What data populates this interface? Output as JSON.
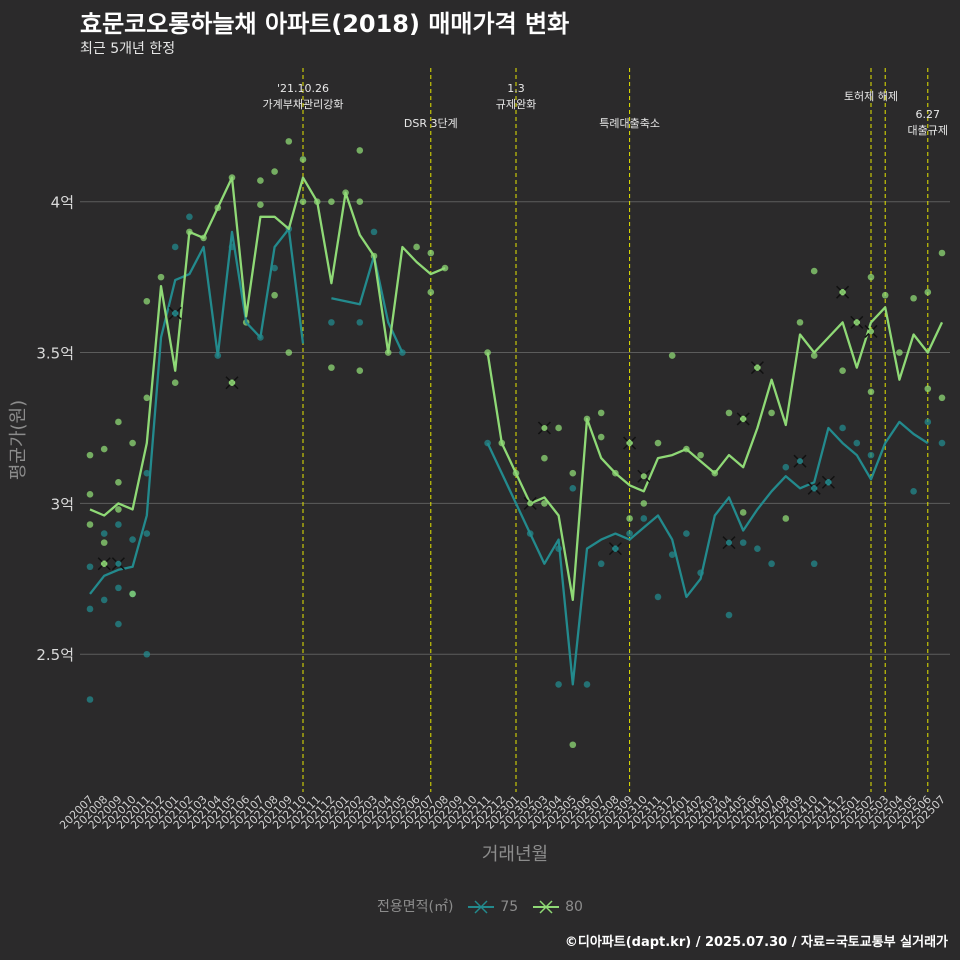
{
  "title": "효문코오롱하늘채 아파트(2018) 매매가격 변화",
  "subtitle": "최근 5개년 한정",
  "caption": "©디아파트(dapt.kr) / 2025.07.30 / 자료=국토교통부 실거래가",
  "colors": {
    "background": "#2b2a2b",
    "s75": "#238a8d",
    "s80": "#8fd976",
    "event_line": "#e5e500",
    "grid": "#5c5c5c"
  },
  "chart_data": {
    "type": "line",
    "xlabel": "거래년월",
    "ylabel": "평균가(원)",
    "ylim": [
      2.05,
      4.42
    ],
    "y_ticks": [
      {
        "value": 2.5,
        "label": "2.5억"
      },
      {
        "value": 3.0,
        "label": "3억"
      },
      {
        "value": 3.5,
        "label": "3.5억"
      },
      {
        "value": 4.0,
        "label": "4억"
      }
    ],
    "legend_title": "전용면적(㎡)",
    "legend_position": "bottom",
    "categories": [
      "202007",
      "202008",
      "202009",
      "202010",
      "202011",
      "202012",
      "202101",
      "202102",
      "202103",
      "202104",
      "202105",
      "202106",
      "202107",
      "202108",
      "202109",
      "202110",
      "202111",
      "202112",
      "202201",
      "202202",
      "202203",
      "202204",
      "202205",
      "202206",
      "202207",
      "202208",
      "202209",
      "202210",
      "202211",
      "202212",
      "202301",
      "202302",
      "202303",
      "202304",
      "202305",
      "202306",
      "202307",
      "202308",
      "202309",
      "202310",
      "202311",
      "202312",
      "202401",
      "202402",
      "202403",
      "202404",
      "202405",
      "202406",
      "202407",
      "202408",
      "202409",
      "202410",
      "202411",
      "202412",
      "202501",
      "202502",
      "202503",
      "202504",
      "202505",
      "202506",
      "202507"
    ],
    "series": [
      {
        "name": "75",
        "color": "#238a8d",
        "values": [
          2.7,
          2.76,
          2.78,
          2.79,
          2.96,
          3.55,
          3.74,
          3.76,
          3.85,
          3.49,
          3.9,
          3.6,
          3.55,
          3.85,
          3.91,
          3.53,
          null,
          3.68,
          3.67,
          3.66,
          3.82,
          3.6,
          3.5,
          null,
          null,
          null,
          null,
          null,
          3.2,
          3.1,
          3.0,
          2.9,
          2.8,
          2.88,
          2.4,
          2.85,
          2.88,
          2.9,
          2.88,
          2.92,
          2.96,
          2.88,
          2.69,
          2.75,
          2.96,
          3.02,
          2.91,
          2.98,
          3.04,
          3.09,
          3.05,
          3.07,
          3.25,
          3.2,
          3.16,
          3.08,
          3.2,
          3.27,
          3.23,
          3.2,
          null
        ]
      },
      {
        "name": "80",
        "color": "#8fd976",
        "values": [
          2.98,
          2.96,
          3.0,
          2.98,
          3.2,
          3.72,
          3.44,
          3.9,
          3.88,
          3.98,
          4.08,
          3.62,
          3.95,
          3.95,
          3.91,
          4.08,
          4.0,
          3.73,
          4.03,
          3.89,
          3.82,
          3.5,
          3.85,
          3.8,
          3.76,
          3.78,
          null,
          null,
          3.5,
          3.2,
          3.1,
          3.0,
          3.02,
          2.96,
          2.68,
          3.28,
          3.15,
          3.1,
          3.06,
          3.04,
          3.15,
          3.16,
          3.18,
          3.14,
          3.1,
          3.16,
          3.12,
          3.25,
          3.41,
          3.26,
          3.56,
          3.5,
          3.55,
          3.6,
          3.45,
          3.6,
          3.65,
          3.41,
          3.56,
          3.5,
          3.6
        ]
      }
    ],
    "scatter_points": [
      {
        "s": "75",
        "x": "202007",
        "y": 2.35
      },
      {
        "s": "75",
        "x": "202007",
        "y": 2.65
      },
      {
        "s": "75",
        "x": "202007",
        "y": 2.79
      },
      {
        "s": "75",
        "x": "202008",
        "y": 2.68
      },
      {
        "s": "75",
        "x": "202008",
        "y": 2.9
      },
      {
        "s": "75",
        "x": "202009",
        "y": 2.6
      },
      {
        "s": "75",
        "x": "202009",
        "y": 2.72
      },
      {
        "s": "75",
        "x": "202009",
        "y": 2.93
      },
      {
        "s": "75",
        "x": "202010",
        "y": 2.7
      },
      {
        "s": "75",
        "x": "202010",
        "y": 2.88
      },
      {
        "s": "75",
        "x": "202011",
        "y": 2.5
      },
      {
        "s": "75",
        "x": "202011",
        "y": 2.9
      },
      {
        "s": "75",
        "x": "202011",
        "y": 3.1
      },
      {
        "s": "75",
        "x": "202101",
        "y": 3.63
      },
      {
        "s": "75",
        "x": "202101",
        "y": 3.85
      },
      {
        "s": "75",
        "x": "202102",
        "y": 3.95
      },
      {
        "s": "75",
        "x": "202104",
        "y": 3.49
      },
      {
        "s": "75",
        "x": "202105",
        "y": 3.85
      },
      {
        "s": "75",
        "x": "202107",
        "y": 3.55
      },
      {
        "s": "75",
        "x": "202108",
        "y": 3.78
      },
      {
        "s": "75",
        "x": "202109",
        "y": 3.91
      },
      {
        "s": "75",
        "x": "202112",
        "y": 3.6
      },
      {
        "s": "75",
        "x": "202202",
        "y": 3.6
      },
      {
        "s": "75",
        "x": "202203",
        "y": 3.9
      },
      {
        "s": "75",
        "x": "202205",
        "y": 3.5
      },
      {
        "s": "75",
        "x": "202211",
        "y": 3.2
      },
      {
        "s": "75",
        "x": "202302",
        "y": 2.9
      },
      {
        "s": "75",
        "x": "202304",
        "y": 2.4
      },
      {
        "s": "75",
        "x": "202304",
        "y": 2.85
      },
      {
        "s": "75",
        "x": "202305",
        "y": 3.05
      },
      {
        "s": "75",
        "x": "202306",
        "y": 2.4
      },
      {
        "s": "75",
        "x": "202307",
        "y": 2.8
      },
      {
        "s": "75",
        "x": "202308",
        "y": 2.85
      },
      {
        "s": "75",
        "x": "202309",
        "y": 2.9
      },
      {
        "s": "75",
        "x": "202310",
        "y": 2.95
      },
      {
        "s": "75",
        "x": "202311",
        "y": 2.69
      },
      {
        "s": "75",
        "x": "202312",
        "y": 2.83
      },
      {
        "s": "75",
        "x": "202401",
        "y": 2.9
      },
      {
        "s": "75",
        "x": "202402",
        "y": 2.77
      },
      {
        "s": "75",
        "x": "202404",
        "y": 2.63
      },
      {
        "s": "75",
        "x": "202405",
        "y": 2.87
      },
      {
        "s": "75",
        "x": "202406",
        "y": 2.85
      },
      {
        "s": "75",
        "x": "202407",
        "y": 2.8
      },
      {
        "s": "75",
        "x": "202408",
        "y": 3.12
      },
      {
        "s": "75",
        "x": "202410",
        "y": 2.8
      },
      {
        "s": "75",
        "x": "202410",
        "y": 3.05
      },
      {
        "s": "75",
        "x": "202411",
        "y": 3.07
      },
      {
        "s": "75",
        "x": "202412",
        "y": 3.25
      },
      {
        "s": "75",
        "x": "202501",
        "y": 3.2
      },
      {
        "s": "75",
        "x": "202502",
        "y": 3.16
      },
      {
        "s": "75",
        "x": "202505",
        "y": 3.04
      },
      {
        "s": "75",
        "x": "202506",
        "y": 3.27
      },
      {
        "s": "75",
        "x": "202507",
        "y": 3.2
      },
      {
        "s": "80",
        "x": "202007",
        "y": 2.93
      },
      {
        "s": "80",
        "x": "202007",
        "y": 3.03
      },
      {
        "s": "80",
        "x": "202007",
        "y": 3.16
      },
      {
        "s": "80",
        "x": "202008",
        "y": 2.8
      },
      {
        "s": "80",
        "x": "202008",
        "y": 2.87
      },
      {
        "s": "80",
        "x": "202008",
        "y": 3.18
      },
      {
        "s": "80",
        "x": "202009",
        "y": 2.98
      },
      {
        "s": "80",
        "x": "202009",
        "y": 3.07
      },
      {
        "s": "80",
        "x": "202009",
        "y": 3.27
      },
      {
        "s": "80",
        "x": "202010",
        "y": 2.7
      },
      {
        "s": "80",
        "x": "202010",
        "y": 3.2
      },
      {
        "s": "80",
        "x": "202011",
        "y": 3.35
      },
      {
        "s": "80",
        "x": "202011",
        "y": 3.67
      },
      {
        "s": "80",
        "x": "202012",
        "y": 3.75
      },
      {
        "s": "80",
        "x": "202101",
        "y": 3.4
      },
      {
        "s": "80",
        "x": "202102",
        "y": 3.9
      },
      {
        "s": "80",
        "x": "202103",
        "y": 3.88
      },
      {
        "s": "80",
        "x": "202104",
        "y": 3.98
      },
      {
        "s": "80",
        "x": "202105",
        "y": 3.4
      },
      {
        "s": "80",
        "x": "202105",
        "y": 4.08
      },
      {
        "s": "80",
        "x": "202106",
        "y": 3.6
      },
      {
        "s": "80",
        "x": "202107",
        "y": 4.07
      },
      {
        "s": "80",
        "x": "202107",
        "y": 3.99
      },
      {
        "s": "80",
        "x": "202108",
        "y": 4.1
      },
      {
        "s": "80",
        "x": "202108",
        "y": 3.69
      },
      {
        "s": "80",
        "x": "202109",
        "y": 4.2
      },
      {
        "s": "80",
        "x": "202109",
        "y": 3.5
      },
      {
        "s": "80",
        "x": "202110",
        "y": 4.14
      },
      {
        "s": "80",
        "x": "202110",
        "y": 4.0
      },
      {
        "s": "80",
        "x": "202111",
        "y": 4.0
      },
      {
        "s": "80",
        "x": "202112",
        "y": 3.45
      },
      {
        "s": "80",
        "x": "202112",
        "y": 4.0
      },
      {
        "s": "80",
        "x": "202201",
        "y": 4.03
      },
      {
        "s": "80",
        "x": "202202",
        "y": 4.17
      },
      {
        "s": "80",
        "x": "202202",
        "y": 3.44
      },
      {
        "s": "80",
        "x": "202202",
        "y": 4.0
      },
      {
        "s": "80",
        "x": "202203",
        "y": 3.82
      },
      {
        "s": "80",
        "x": "202204",
        "y": 3.5
      },
      {
        "s": "80",
        "x": "202206",
        "y": 3.85
      },
      {
        "s": "80",
        "x": "202207",
        "y": 3.83
      },
      {
        "s": "80",
        "x": "202207",
        "y": 3.7
      },
      {
        "s": "80",
        "x": "202208",
        "y": 3.78
      },
      {
        "s": "80",
        "x": "202211",
        "y": 3.5
      },
      {
        "s": "80",
        "x": "202212",
        "y": 3.2
      },
      {
        "s": "80",
        "x": "202301",
        "y": 3.1
      },
      {
        "s": "80",
        "x": "202303",
        "y": 3.0
      },
      {
        "s": "80",
        "x": "202303",
        "y": 3.15
      },
      {
        "s": "80",
        "x": "202304",
        "y": 3.25
      },
      {
        "s": "80",
        "x": "202305",
        "y": 2.2
      },
      {
        "s": "80",
        "x": "202305",
        "y": 3.1
      },
      {
        "s": "80",
        "x": "202306",
        "y": 3.28
      },
      {
        "s": "80",
        "x": "202307",
        "y": 3.3
      },
      {
        "s": "80",
        "x": "202307",
        "y": 3.22
      },
      {
        "s": "80",
        "x": "202308",
        "y": 3.1
      },
      {
        "s": "80",
        "x": "202309",
        "y": 2.95
      },
      {
        "s": "80",
        "x": "202309",
        "y": 3.2
      },
      {
        "s": "80",
        "x": "202310",
        "y": 3.0
      },
      {
        "s": "80",
        "x": "202311",
        "y": 3.2
      },
      {
        "s": "80",
        "x": "202312",
        "y": 3.49
      },
      {
        "s": "80",
        "x": "202401",
        "y": 3.18
      },
      {
        "s": "80",
        "x": "202402",
        "y": 3.16
      },
      {
        "s": "80",
        "x": "202403",
        "y": 3.1
      },
      {
        "s": "80",
        "x": "202404",
        "y": 3.3
      },
      {
        "s": "80",
        "x": "202405",
        "y": 3.28
      },
      {
        "s": "80",
        "x": "202405",
        "y": 2.97
      },
      {
        "s": "80",
        "x": "202406",
        "y": 3.45
      },
      {
        "s": "80",
        "x": "202407",
        "y": 3.3
      },
      {
        "s": "80",
        "x": "202408",
        "y": 2.95
      },
      {
        "s": "80",
        "x": "202409",
        "y": 3.6
      },
      {
        "s": "80",
        "x": "202410",
        "y": 3.77
      },
      {
        "s": "80",
        "x": "202410",
        "y": 3.49
      },
      {
        "s": "80",
        "x": "202412",
        "y": 3.7
      },
      {
        "s": "80",
        "x": "202412",
        "y": 3.44
      },
      {
        "s": "80",
        "x": "202501",
        "y": 3.6
      },
      {
        "s": "80",
        "x": "202502",
        "y": 3.75
      },
      {
        "s": "80",
        "x": "202502",
        "y": 3.37
      },
      {
        "s": "80",
        "x": "202503",
        "y": 3.69
      },
      {
        "s": "80",
        "x": "202504",
        "y": 3.5
      },
      {
        "s": "80",
        "x": "202505",
        "y": 3.68
      },
      {
        "s": "80",
        "x": "202506",
        "y": 3.7
      },
      {
        "s": "80",
        "x": "202506",
        "y": 3.38
      },
      {
        "s": "80",
        "x": "202507",
        "y": 3.83
      },
      {
        "s": "80",
        "x": "202507",
        "y": 3.35
      }
    ],
    "cross_points": [
      {
        "s": "80",
        "x": "202008",
        "y": 2.8
      },
      {
        "s": "75",
        "x": "202009",
        "y": 2.8
      },
      {
        "s": "75",
        "x": "202101",
        "y": 3.63
      },
      {
        "s": "80",
        "x": "202105",
        "y": 3.4
      },
      {
        "s": "80",
        "x": "202302",
        "y": 3.0
      },
      {
        "s": "80",
        "x": "202303",
        "y": 3.25
      },
      {
        "s": "75",
        "x": "202308",
        "y": 2.85
      },
      {
        "s": "80",
        "x": "202309",
        "y": 3.2
      },
      {
        "s": "80",
        "x": "202310",
        "y": 3.09
      },
      {
        "s": "75",
        "x": "202404",
        "y": 2.87
      },
      {
        "s": "80",
        "x": "202405",
        "y": 3.28
      },
      {
        "s": "80",
        "x": "202406",
        "y": 3.45
      },
      {
        "s": "75",
        "x": "202409",
        "y": 3.14
      },
      {
        "s": "75",
        "x": "202410",
        "y": 3.05
      },
      {
        "s": "75",
        "x": "202411",
        "y": 3.07
      },
      {
        "s": "80",
        "x": "202412",
        "y": 3.7
      },
      {
        "s": "80",
        "x": "202501",
        "y": 3.6
      },
      {
        "s": "80",
        "x": "202502",
        "y": 3.57
      }
    ],
    "events": [
      {
        "x": "202110",
        "lines": [
          "'21.10.26",
          "가계부채관리강화"
        ],
        "row": 0
      },
      {
        "x": "202207",
        "lines": [
          "DSR 3단계"
        ],
        "row": 2
      },
      {
        "x": "202301",
        "lines": [
          "1.3",
          "규제완화"
        ],
        "row": 0
      },
      {
        "x": "202309",
        "lines": [
          "특례대출축소"
        ],
        "row": 2
      },
      {
        "x": "202502",
        "lines": [
          "토허제 해제"
        ],
        "row": 1
      },
      {
        "x": "202503",
        "lines": [],
        "row": 1
      },
      {
        "x": "202506",
        "lines": [
          "6.27",
          "대출규제"
        ],
        "row": 3
      }
    ]
  }
}
